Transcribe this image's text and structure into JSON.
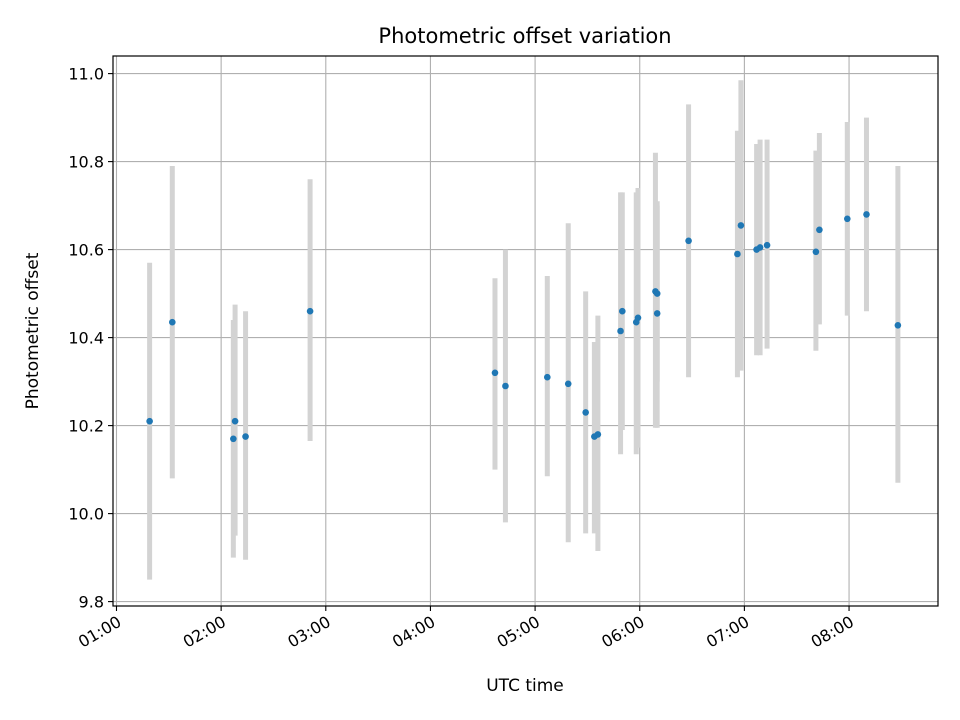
{
  "chart_data": {
    "type": "scatter",
    "title": "Photometric offset variation",
    "xlabel": "UTC time",
    "ylabel": "Photometric offset",
    "grid": true,
    "x_range": [
      "00:58",
      "08:51"
    ],
    "ylim": [
      9.79,
      11.04
    ],
    "x_ticks": [
      "01:00",
      "02:00",
      "03:00",
      "04:00",
      "05:00",
      "06:00",
      "07:00",
      "08:00"
    ],
    "y_ticks": [
      9.8,
      10.0,
      10.2,
      10.4,
      10.6,
      10.8,
      11.0
    ],
    "colors": {
      "point": "#1f77b4",
      "errorbar": "#d3d3d3",
      "grid": "#b0b0b0"
    },
    "series": [
      {
        "points": [
          {
            "x": "01:19",
            "y": 10.21,
            "lo": 9.85,
            "hi": 10.57
          },
          {
            "x": "01:32",
            "y": 10.435,
            "lo": 10.08,
            "hi": 10.79
          },
          {
            "x": "02:07",
            "y": 10.17,
            "lo": 9.9,
            "hi": 10.44
          },
          {
            "x": "02:08",
            "y": 10.21,
            "lo": 9.95,
            "hi": 10.475
          },
          {
            "x": "02:14",
            "y": 10.175,
            "lo": 9.895,
            "hi": 10.46
          },
          {
            "x": "02:51",
            "y": 10.46,
            "lo": 10.165,
            "hi": 10.76
          },
          {
            "x": "04:37",
            "y": 10.32,
            "lo": 10.1,
            "hi": 10.535
          },
          {
            "x": "04:43",
            "y": 10.29,
            "lo": 9.98,
            "hi": 10.6
          },
          {
            "x": "05:07",
            "y": 10.31,
            "lo": 10.085,
            "hi": 10.54
          },
          {
            "x": "05:19",
            "y": 10.295,
            "lo": 9.935,
            "hi": 10.66
          },
          {
            "x": "05:29",
            "y": 10.23,
            "lo": 9.955,
            "hi": 10.505
          },
          {
            "x": "05:34",
            "y": 10.175,
            "lo": 9.955,
            "hi": 10.39
          },
          {
            "x": "05:36",
            "y": 10.18,
            "lo": 9.915,
            "hi": 10.45
          },
          {
            "x": "05:49",
            "y": 10.415,
            "lo": 10.135,
            "hi": 10.73
          },
          {
            "x": "05:50",
            "y": 10.46,
            "lo": 10.19,
            "hi": 10.73
          },
          {
            "x": "05:58",
            "y": 10.435,
            "lo": 10.135,
            "hi": 10.73
          },
          {
            "x": "05:59",
            "y": 10.445,
            "lo": 10.15,
            "hi": 10.74
          },
          {
            "x": "06:09",
            "y": 10.505,
            "lo": 10.195,
            "hi": 10.82
          },
          {
            "x": "06:10",
            "y": 10.5,
            "lo": 10.3,
            "hi": 10.7
          },
          {
            "x": "06:10",
            "y": 10.455,
            "lo": 10.195,
            "hi": 10.71
          },
          {
            "x": "06:28",
            "y": 10.62,
            "lo": 10.31,
            "hi": 10.93
          },
          {
            "x": "06:56",
            "y": 10.59,
            "lo": 10.31,
            "hi": 10.87
          },
          {
            "x": "06:58",
            "y": 10.655,
            "lo": 10.325,
            "hi": 10.985
          },
          {
            "x": "07:07",
            "y": 10.6,
            "lo": 10.36,
            "hi": 10.84
          },
          {
            "x": "07:09",
            "y": 10.605,
            "lo": 10.36,
            "hi": 10.85
          },
          {
            "x": "07:13",
            "y": 10.61,
            "lo": 10.375,
            "hi": 10.85
          },
          {
            "x": "07:41",
            "y": 10.595,
            "lo": 10.37,
            "hi": 10.825
          },
          {
            "x": "07:43",
            "y": 10.645,
            "lo": 10.43,
            "hi": 10.865
          },
          {
            "x": "07:59",
            "y": 10.67,
            "lo": 10.45,
            "hi": 10.89
          },
          {
            "x": "08:10",
            "y": 10.68,
            "lo": 10.46,
            "hi": 10.9
          },
          {
            "x": "08:28",
            "y": 10.428,
            "lo": 10.07,
            "hi": 10.79
          }
        ]
      }
    ]
  }
}
